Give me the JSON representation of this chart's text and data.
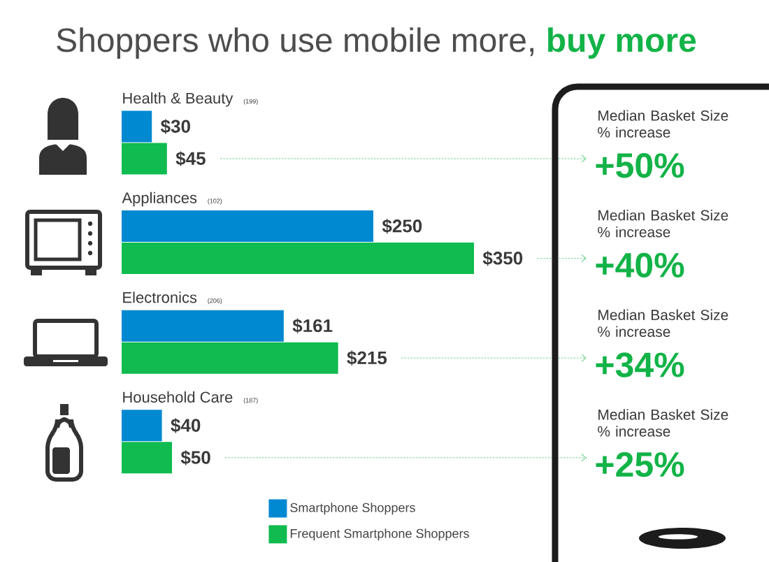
{
  "chart_data": {
    "type": "bar",
    "orientation": "horizontal",
    "title": "Shoppers who use mobile more, **buy more**",
    "categories": [
      "Health & Beauty",
      "Appliances",
      "Electronics",
      "Household Care"
    ],
    "series": [
      {
        "name": "Smartphone Shoppers",
        "color": "#0088d1",
        "values": [
          30,
          250,
          161,
          40
        ],
        "value_labels": [
          "$30",
          "$250",
          "$161",
          "$40"
        ]
      },
      {
        "name": "Frequent Smartphone Shoppers",
        "color": "#10bb4f",
        "values": [
          45,
          350,
          215,
          50
        ],
        "value_labels": [
          "$45",
          "$350",
          "$215",
          "$50"
        ]
      }
    ],
    "legend": "bottom",
    "annotations": [
      "(199)",
      "Median Basket Size % increase",
      "+50%",
      "(102)",
      "Median Basket Size % increase",
      "+40%",
      "(206)",
      "Median Basket Size % increase",
      "+34%",
      "(187)",
      "Median Basket Size % increase",
      "+25%"
    ]
  }
}
